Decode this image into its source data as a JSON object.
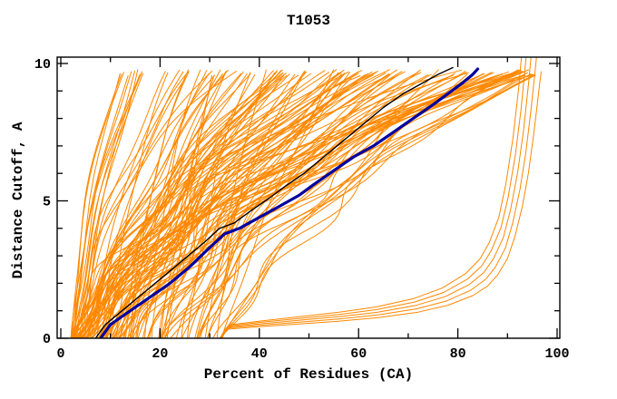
{
  "chart_data": {
    "type": "line",
    "title": "T1053",
    "xlabel": "Percent of Residues (CA)",
    "ylabel": "Distance Cutoff, A",
    "xlim": [
      0,
      100
    ],
    "ylim": [
      0,
      10
    ],
    "x_major_ticks": [
      0,
      20,
      40,
      60,
      80,
      100
    ],
    "x_tick_labels": [
      "0",
      "20",
      "40",
      "60",
      "80",
      "100"
    ],
    "x_minor_step": 10,
    "y_major_ticks": [
      0,
      5,
      10
    ],
    "y_tick_labels": [
      "0",
      "5",
      "10"
    ],
    "y_minor_step": 1,
    "grid": false,
    "legend": "none",
    "colors": {
      "frame": "#000000",
      "ensemble": "#FF8800",
      "highlight_navy": "#0000A0",
      "highlight_black": "#000000",
      "background": "#FFFFFF"
    },
    "series": [
      {
        "name": "highlight-model-navy",
        "color": "#0000A0",
        "width": 3.2,
        "points": [
          [
            8,
            0
          ],
          [
            10,
            0.5
          ],
          [
            14,
            1.0
          ],
          [
            18,
            1.5
          ],
          [
            22,
            2.0
          ],
          [
            26,
            2.6
          ],
          [
            30,
            3.3
          ],
          [
            33,
            3.8
          ],
          [
            36,
            4.0
          ],
          [
            40,
            4.4
          ],
          [
            44,
            4.8
          ],
          [
            48,
            5.2
          ],
          [
            51,
            5.6
          ],
          [
            55,
            6.1
          ],
          [
            59,
            6.6
          ],
          [
            63,
            7.0
          ],
          [
            67,
            7.5
          ],
          [
            71,
            8.0
          ],
          [
            75,
            8.5
          ],
          [
            78,
            8.9
          ],
          [
            81,
            9.3
          ],
          [
            83,
            9.6
          ],
          [
            84,
            9.8
          ]
        ]
      },
      {
        "name": "highlight-model-black",
        "color": "#000000",
        "width": 1.4,
        "points": [
          [
            7,
            0
          ],
          [
            9,
            0.5
          ],
          [
            13,
            1.1
          ],
          [
            17,
            1.7
          ],
          [
            21,
            2.3
          ],
          [
            25,
            2.9
          ],
          [
            29,
            3.5
          ],
          [
            32,
            4.0
          ],
          [
            35,
            4.2
          ],
          [
            38,
            4.6
          ],
          [
            42,
            5.1
          ],
          [
            45,
            5.5
          ],
          [
            49,
            6.0
          ],
          [
            53,
            6.6
          ],
          [
            57,
            7.2
          ],
          [
            61,
            7.8
          ],
          [
            65,
            8.4
          ],
          [
            69,
            8.9
          ],
          [
            73,
            9.3
          ],
          [
            76,
            9.6
          ],
          [
            79,
            9.85
          ]
        ]
      }
    ],
    "ensemble": {
      "description": "many server model curves in orange filling from lower-left to upper-right",
      "count": 135,
      "seed": 42,
      "start_x_range": [
        2,
        33
      ],
      "top_x_range": [
        11,
        96
      ],
      "top_y_range": [
        9.55,
        9.78
      ]
    },
    "outlier_bundle": {
      "description": "low-lying curves that stay near y<1 until ~90% then rise vertically near 97%",
      "count": 5,
      "base_points": [
        [
          33,
          0.32
        ],
        [
          40,
          0.42
        ],
        [
          48,
          0.52
        ],
        [
          56,
          0.62
        ],
        [
          64,
          0.75
        ],
        [
          72,
          0.95
        ],
        [
          78,
          1.2
        ],
        [
          83,
          1.55
        ],
        [
          86,
          1.9
        ],
        [
          88,
          2.3
        ],
        [
          90,
          2.9
        ],
        [
          91.5,
          3.7
        ],
        [
          93,
          4.8
        ],
        [
          94.2,
          6.0
        ],
        [
          95.2,
          7.3
        ],
        [
          96,
          8.5
        ],
        [
          96.5,
          9.3
        ],
        [
          96.8,
          9.7
        ]
      ]
    }
  }
}
